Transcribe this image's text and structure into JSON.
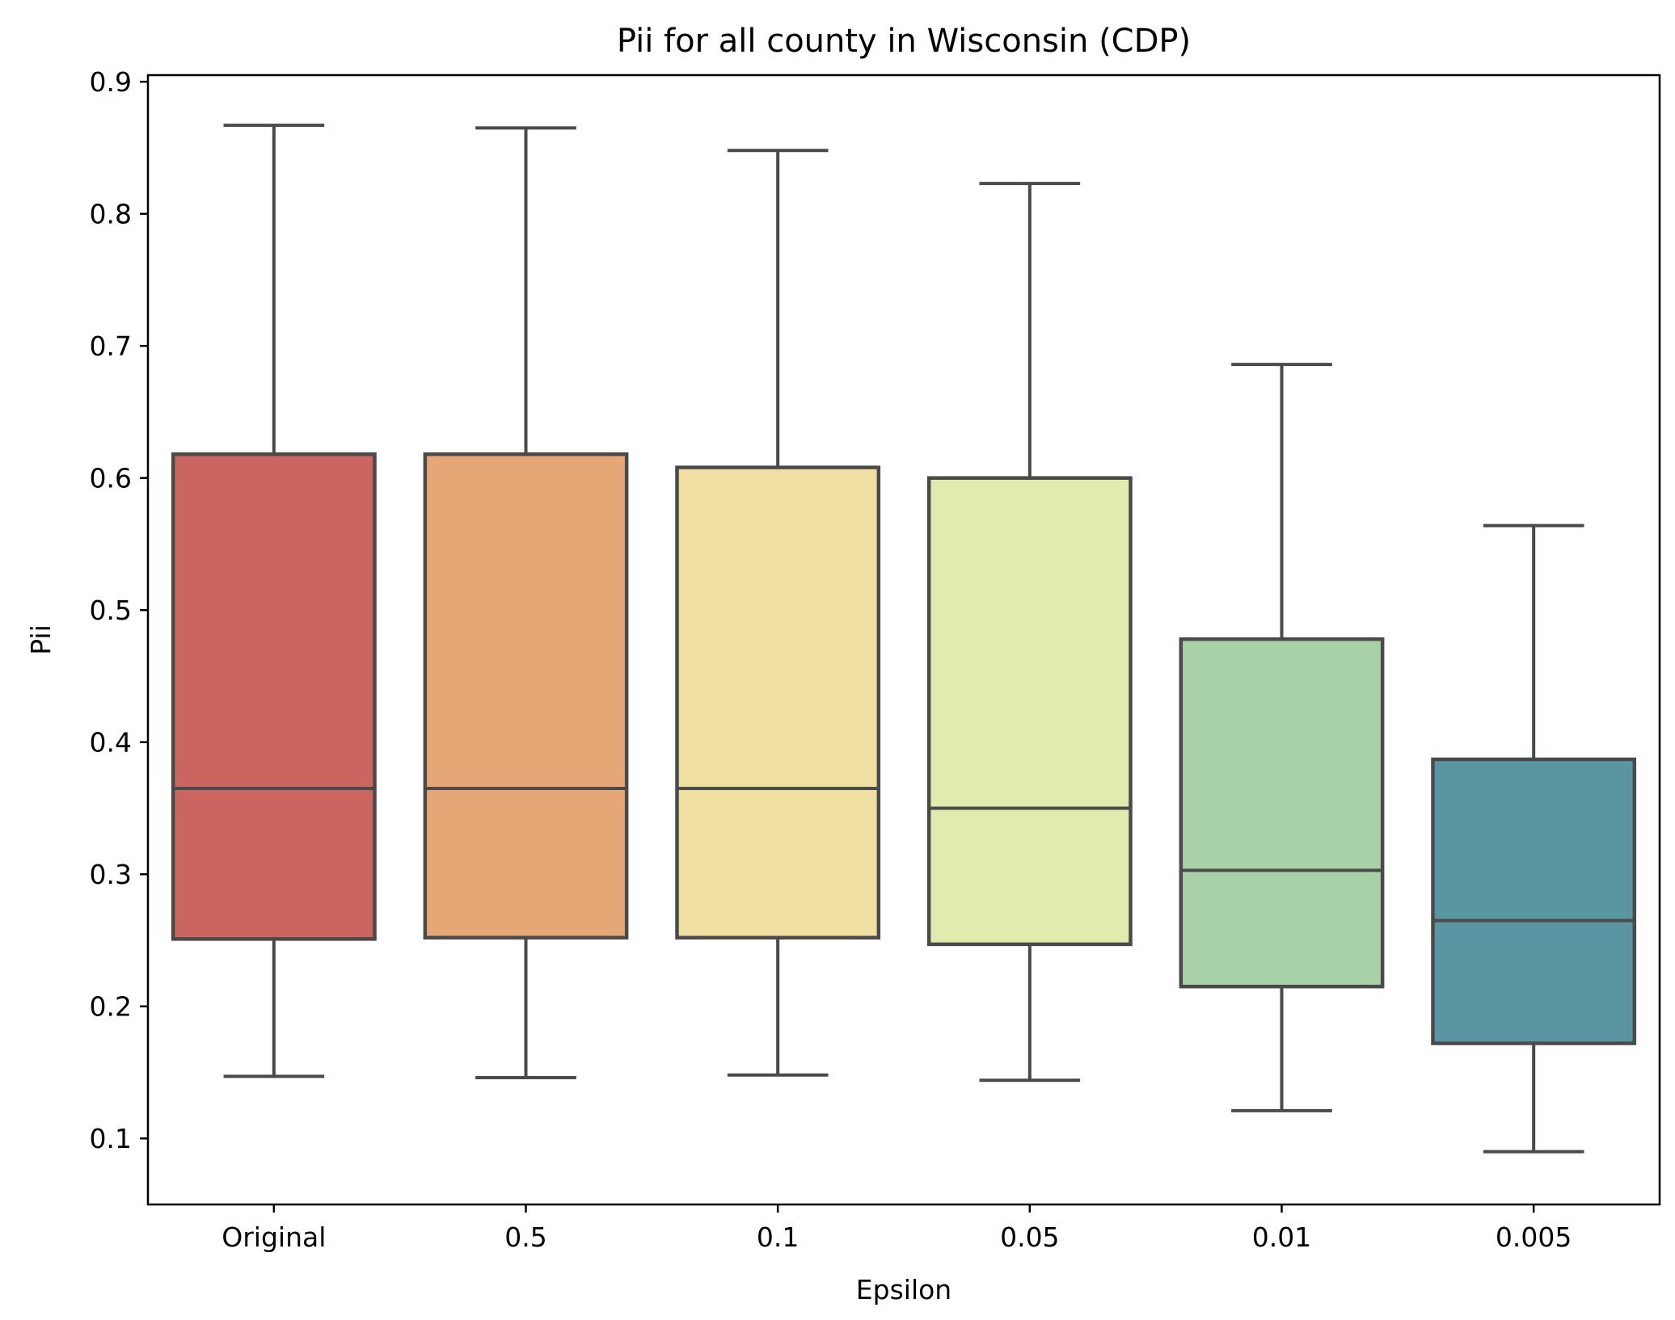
{
  "chart_data": {
    "type": "box",
    "title": "Pii for all county in Wisconsin (CDP)",
    "xlabel": "Epsilon",
    "ylabel": "Pii",
    "ylim": [
      0.05,
      0.905
    ],
    "yticks": [
      "0.1",
      "0.2",
      "0.3",
      "0.4",
      "0.5",
      "0.6",
      "0.7",
      "0.8",
      "0.9"
    ],
    "grid": false,
    "categories": [
      "Original",
      "0.5",
      "0.1",
      "0.05",
      "0.01",
      "0.005"
    ],
    "boxes": [
      {
        "category": "Original",
        "whisker_low": 0.147,
        "q1": 0.251,
        "median": 0.365,
        "q3": 0.618,
        "whisker_high": 0.867,
        "color": "#cb6560"
      },
      {
        "category": "0.5",
        "whisker_low": 0.146,
        "q1": 0.252,
        "median": 0.365,
        "q3": 0.618,
        "whisker_high": 0.865,
        "color": "#e5a775"
      },
      {
        "category": "0.1",
        "whisker_low": 0.148,
        "q1": 0.252,
        "median": 0.365,
        "q3": 0.608,
        "whisker_high": 0.848,
        "color": "#efe0a2"
      },
      {
        "category": "0.05",
        "whisker_low": 0.144,
        "q1": 0.247,
        "median": 0.35,
        "q3": 0.6,
        "whisker_high": 0.823,
        "color": "#e2ebad"
      },
      {
        "category": "0.01",
        "whisker_low": 0.121,
        "q1": 0.215,
        "median": 0.303,
        "q3": 0.478,
        "whisker_high": 0.686,
        "color": "#a9d1a7"
      },
      {
        "category": "0.005",
        "whisker_low": 0.09,
        "q1": 0.172,
        "median": 0.265,
        "q3": 0.387,
        "whisker_high": 0.564,
        "color": "#5a95a2"
      }
    ],
    "line_color": "#4a4a4a"
  }
}
